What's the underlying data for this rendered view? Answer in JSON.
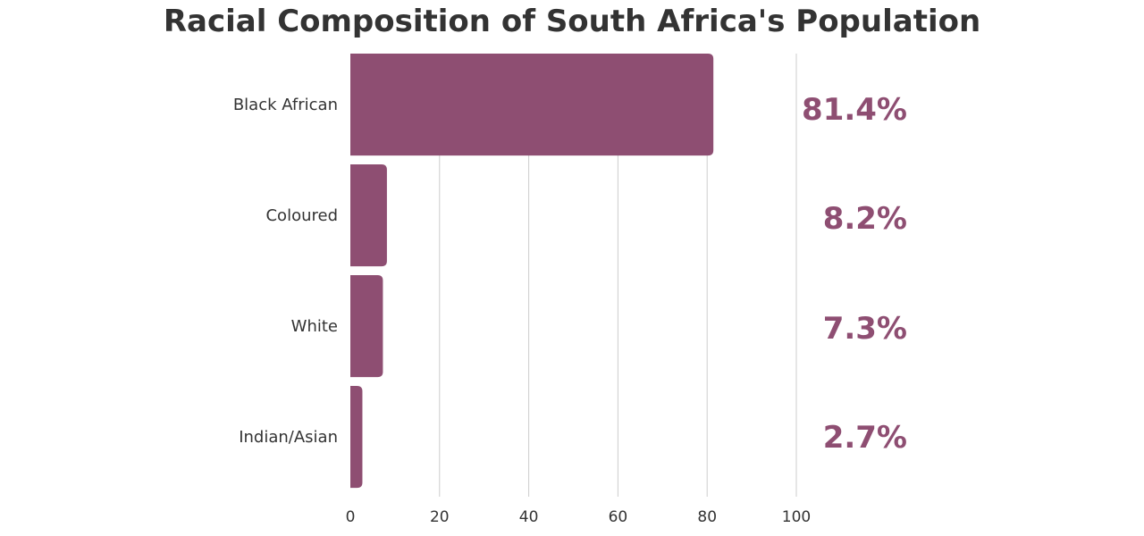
{
  "chart_data": {
    "type": "bar",
    "orientation": "horizontal",
    "title": "Racial Composition of South Africa's Population",
    "xlabel": "",
    "ylabel": "",
    "categories": [
      "Black African",
      "Coloured",
      "White",
      "Indian/Asian"
    ],
    "values": [
      81.4,
      8.2,
      7.3,
      2.7
    ],
    "value_labels": [
      "81.4%",
      "8.2%",
      "7.3%",
      "2.7%"
    ],
    "xlim": [
      0,
      100
    ],
    "xticks": [
      0,
      20,
      40,
      60,
      80,
      100
    ],
    "grid": true,
    "legend": "none",
    "colors": {
      "bar": "#8e4e72",
      "value_label": "#8e4e72"
    }
  }
}
